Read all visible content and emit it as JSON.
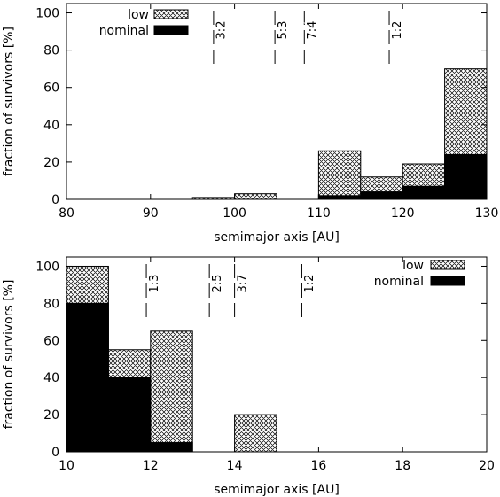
{
  "chart_data": [
    {
      "type": "bar",
      "stacked": "overlay",
      "xlabel": "semimajor axis [AU]",
      "ylabel": "fraction of survivors [%]",
      "xlim": [
        80,
        130
      ],
      "ylim": [
        0,
        105
      ],
      "xticks": [
        80,
        90,
        100,
        110,
        120,
        130
      ],
      "yticks": [
        0,
        20,
        40,
        60,
        80,
        100
      ],
      "grid": false,
      "legend_position": "top-left",
      "bins": [
        [
          95,
          100
        ],
        [
          100,
          105
        ],
        [
          105,
          110
        ],
        [
          110,
          115
        ],
        [
          115,
          120
        ],
        [
          120,
          125
        ],
        [
          125,
          130
        ]
      ],
      "series": [
        {
          "name": "low",
          "pattern": "crosshatch",
          "values": [
            1,
            3,
            0,
            26,
            12,
            19,
            70
          ]
        },
        {
          "name": "nominal",
          "color": "#000000",
          "values": [
            0,
            0,
            0,
            2,
            4,
            7,
            24
          ]
        }
      ],
      "resonances": [
        {
          "label": "3:2",
          "x": 97.5
        },
        {
          "label": "5:3",
          "x": 104.8
        },
        {
          "label": "7:4",
          "x": 108.3
        },
        {
          "label": "1:2",
          "x": 118.4
        }
      ]
    },
    {
      "type": "bar",
      "stacked": "overlay",
      "xlabel": "semimajor axis [AU]",
      "ylabel": "fraction of survivors [%]",
      "xlim": [
        10,
        20
      ],
      "ylim": [
        0,
        105
      ],
      "xticks": [
        10,
        12,
        14,
        16,
        18,
        20
      ],
      "yticks": [
        0,
        20,
        40,
        60,
        80,
        100
      ],
      "grid": false,
      "legend_position": "top-right",
      "bins": [
        [
          10,
          11
        ],
        [
          11,
          12
        ],
        [
          12,
          13
        ],
        [
          13,
          14
        ],
        [
          14,
          15
        ],
        [
          15,
          16
        ],
        [
          16,
          17
        ],
        [
          17,
          18
        ],
        [
          18,
          19
        ],
        [
          19,
          20
        ]
      ],
      "series": [
        {
          "name": "low",
          "pattern": "crosshatch",
          "values": [
            100,
            55,
            65,
            0,
            20,
            0,
            0,
            0,
            0,
            0
          ]
        },
        {
          "name": "nominal",
          "color": "#000000",
          "values": [
            80,
            40,
            5,
            0,
            0,
            0,
            0,
            0,
            0,
            0
          ]
        }
      ],
      "resonances": [
        {
          "label": "1:3",
          "x": 11.9
        },
        {
          "label": "2:5",
          "x": 13.4
        },
        {
          "label": "3:7",
          "x": 14.0
        },
        {
          "label": "1:2",
          "x": 15.6
        }
      ]
    }
  ]
}
